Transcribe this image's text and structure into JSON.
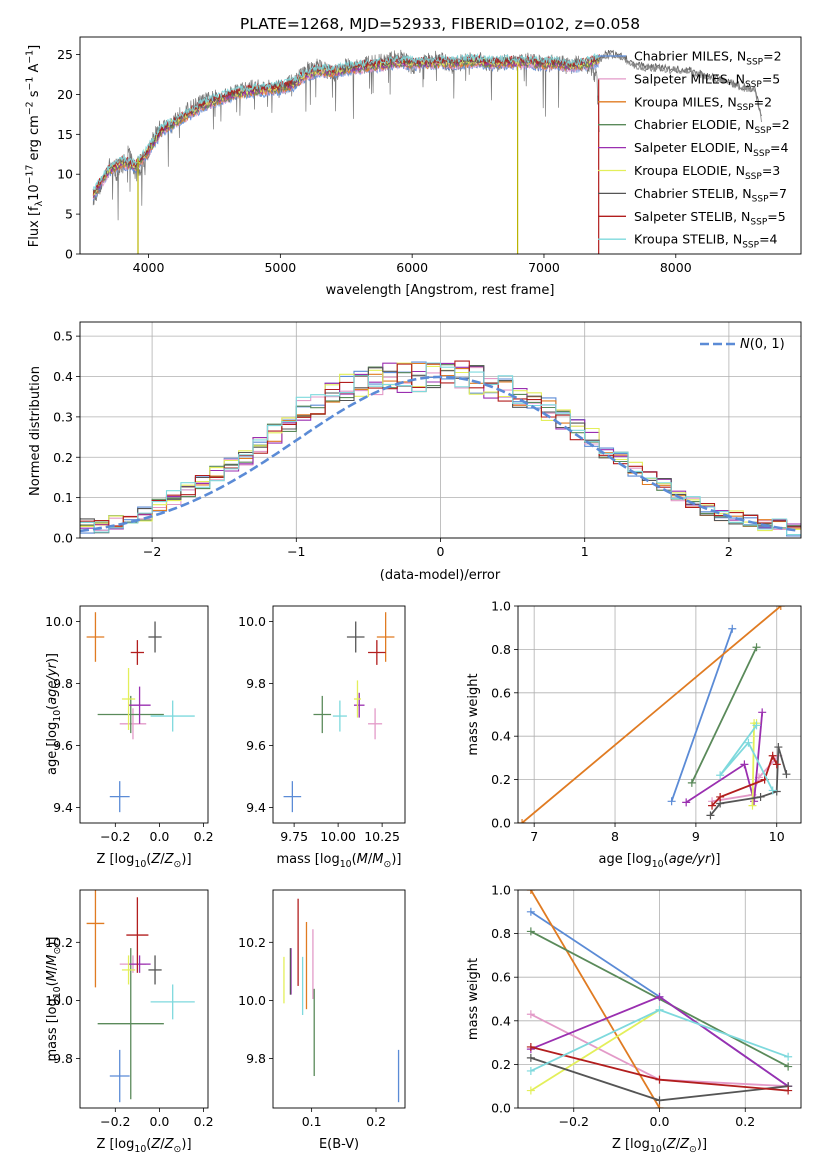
{
  "figure": {
    "title": "PLATE=1268, MJD=52933, FIBERID=0102, z=0.058"
  },
  "series_styles": [
    {
      "name": "Chabrier MILES",
      "nssp": "2",
      "color": "#5b8bd6"
    },
    {
      "name": "Salpeter MILES",
      "nssp": "5",
      "color": "#e39ac8"
    },
    {
      "name": "Kroupa MILES",
      "nssp": "2",
      "color": "#e07b22"
    },
    {
      "name": "Chabrier ELODIE",
      "nssp": "2",
      "color": "#5a8a5a"
    },
    {
      "name": "Salpeter ELODIE",
      "nssp": "4",
      "color": "#9a2fb0"
    },
    {
      "name": "Kroupa ELODIE",
      "nssp": "3",
      "color": "#e3ef5a"
    },
    {
      "name": "Chabrier STELIB",
      "nssp": "7",
      "color": "#555555"
    },
    {
      "name": "Salpeter STELIB",
      "nssp": "5",
      "color": "#b21e1e"
    },
    {
      "name": "Kroupa STELIB",
      "nssp": "4",
      "color": "#7ed9dd"
    }
  ],
  "chart_data": [
    {
      "id": "spectrum",
      "type": "line",
      "title": "PLATE=1268, MJD=52933, FIBERID=0102, z=0.058",
      "xlabel": "wavelength [Angstrom, rest frame]",
      "ylabel": "Flux [f_λ 10^-17 erg cm^-2 s^-1 A^-1]",
      "xlim": [
        3480,
        8950
      ],
      "ylim": [
        0,
        27.2
      ],
      "xticks": [
        4000,
        5000,
        6000,
        7000,
        8000
      ],
      "yticks": [
        0,
        5,
        10,
        15,
        20,
        25
      ],
      "grid": false,
      "legend": "top-right",
      "observed_flux": {
        "x": [
          3580,
          3650,
          3700,
          3750,
          3800,
          3850,
          3900,
          3950,
          4000,
          4050,
          4100,
          4150,
          4200,
          4300,
          4400,
          4500,
          4600,
          4700,
          4800,
          4900,
          5000,
          5100,
          5200,
          5300,
          5400,
          5500,
          5600,
          5700,
          5800,
          5900,
          6000,
          6100,
          6200,
          6300,
          6400,
          6500,
          6600,
          6700,
          6800,
          6900,
          7000,
          7100,
          7200,
          7300,
          7400,
          7420
        ],
        "y": [
          7,
          9,
          11,
          10,
          11,
          13,
          10,
          11,
          13,
          15,
          16,
          16,
          17,
          18,
          19,
          19.5,
          20,
          20.5,
          20.8,
          20.8,
          21,
          21.5,
          23,
          23.5,
          22.5,
          23.5,
          23.5,
          24,
          24,
          24.8,
          23.5,
          24,
          24.5,
          23.5,
          24.2,
          24.3,
          23.8,
          24,
          24,
          24.2,
          23.8,
          24,
          23.5,
          24,
          22.2,
          16
        ]
      },
      "model_flux": {
        "x": [
          3580,
          3700,
          3800,
          3900,
          4000,
          4100,
          4200,
          4300,
          4400,
          4500,
          4600,
          4700,
          4800,
          4900,
          5000,
          5100,
          5200,
          5300,
          5400,
          5500,
          5600,
          5700,
          5800,
          5900,
          6000,
          6100,
          6200,
          6300,
          6400,
          6500,
          6600,
          6700,
          6800,
          6900,
          7000,
          7100,
          7200,
          7300,
          7400,
          7500,
          7600,
          7700,
          7800,
          7900,
          8000,
          8100,
          8200,
          8300,
          8400,
          8500,
          8600,
          8650
        ],
        "y": [
          7.5,
          10.5,
          11.5,
          11,
          13,
          15.5,
          16.5,
          17.5,
          18.5,
          19.2,
          19.8,
          20.2,
          20.5,
          20.6,
          20.8,
          21.3,
          22.5,
          23,
          22.8,
          23.2,
          23.4,
          23.6,
          23.8,
          24,
          23.9,
          23.9,
          24,
          23.9,
          24.1,
          24.1,
          23.9,
          24,
          24,
          24,
          23.8,
          23.9,
          23.5,
          23.8,
          24.2,
          25,
          24.6,
          23.4,
          23.3,
          23,
          23,
          22.8,
          22.3,
          21.8,
          21.5,
          20.8,
          20.5,
          16.8
        ]
      }
    },
    {
      "id": "residuals",
      "type": "histogram",
      "xlabel": "(data-model)/error",
      "ylabel": "Normed distribution",
      "xlim": [
        -2.5,
        2.5
      ],
      "ylim": [
        0,
        0.535
      ],
      "xticks": [
        -2,
        -1,
        0,
        1,
        2
      ],
      "yticks": [
        0.0,
        0.1,
        0.2,
        0.3,
        0.4,
        0.5
      ],
      "grid": true,
      "legend": "top-right",
      "reference_curve": {
        "label": "N(0,1)",
        "mean": 0,
        "sigma": 1,
        "style": "dashed",
        "color": "#5b8bd6"
      },
      "bin_edges_start": -2.5,
      "bin_width": 0.1,
      "envelope": [
        0.03,
        0.03,
        0.04,
        0.05,
        0.06,
        0.08,
        0.1,
        0.12,
        0.14,
        0.16,
        0.18,
        0.2,
        0.23,
        0.26,
        0.29,
        0.32,
        0.33,
        0.35,
        0.37,
        0.38,
        0.39,
        0.4,
        0.4,
        0.4,
        0.4,
        0.4,
        0.4,
        0.39,
        0.38,
        0.37,
        0.35,
        0.34,
        0.32,
        0.29,
        0.27,
        0.25,
        0.22,
        0.2,
        0.17,
        0.15,
        0.13,
        0.11,
        0.09,
        0.07,
        0.06,
        0.05,
        0.04,
        0.03,
        0.03,
        0.02
      ]
    },
    {
      "id": "age_vs_metallicity",
      "type": "errorbar",
      "xlabel": "Z [log10(Z/Z⊙)]",
      "ylabel": "age  [log10(age/yr)]",
      "xlim": [
        -0.36,
        0.22
      ],
      "ylim": [
        9.35,
        10.05
      ],
      "xticks": [
        -0.2,
        0.0,
        0.2
      ],
      "yticks": [
        9.4,
        9.6,
        9.8,
        10.0
      ],
      "points": [
        {
          "series": 0,
          "x": -0.18,
          "y": 9.435,
          "xerr": 0.045,
          "yerr": 0.05
        },
        {
          "series": 1,
          "x": -0.12,
          "y": 9.67,
          "xerr": 0.06,
          "yerr": 0.05
        },
        {
          "series": 2,
          "x": -0.29,
          "y": 9.95,
          "xerr": 0.04,
          "yerr": 0.08
        },
        {
          "series": 3,
          "x": -0.13,
          "y": 9.7,
          "xerr": 0.15,
          "yerr": 0.06
        },
        {
          "series": 4,
          "x": -0.09,
          "y": 9.73,
          "xerr": 0.05,
          "yerr": 0.06
        },
        {
          "series": 5,
          "x": -0.14,
          "y": 9.75,
          "xerr": 0.03,
          "yerr": 0.1
        },
        {
          "series": 6,
          "x": -0.02,
          "y": 9.95,
          "xerr": 0.03,
          "yerr": 0.05
        },
        {
          "series": 7,
          "x": -0.1,
          "y": 9.9,
          "xerr": 0.03,
          "yerr": 0.04
        },
        {
          "series": 8,
          "x": 0.06,
          "y": 9.695,
          "xerr": 0.1,
          "yerr": 0.05
        }
      ]
    },
    {
      "id": "age_vs_mass",
      "type": "errorbar",
      "xlabel": "mass [log10(M/M⊙)]",
      "ylabel": "",
      "xlim": [
        9.63,
        10.38
      ],
      "ylim": [
        9.35,
        10.05
      ],
      "xticks": [
        9.75,
        10.0,
        10.25
      ],
      "yticks": [
        9.4,
        9.6,
        9.8,
        10.0
      ],
      "points": [
        {
          "series": 0,
          "x": 9.74,
          "y": 9.435,
          "xerr": 0.05,
          "yerr": 0.05
        },
        {
          "series": 1,
          "x": 10.21,
          "y": 9.67,
          "xerr": 0.04,
          "yerr": 0.05
        },
        {
          "series": 2,
          "x": 10.27,
          "y": 9.95,
          "xerr": 0.05,
          "yerr": 0.08
        },
        {
          "series": 3,
          "x": 9.91,
          "y": 9.7,
          "xerr": 0.05,
          "yerr": 0.06
        },
        {
          "series": 4,
          "x": 10.12,
          "y": 9.73,
          "xerr": 0.03,
          "yerr": 0.04
        },
        {
          "series": 5,
          "x": 10.11,
          "y": 9.75,
          "xerr": 0.02,
          "yerr": 0.06
        },
        {
          "series": 6,
          "x": 10.1,
          "y": 9.95,
          "xerr": 0.05,
          "yerr": 0.05
        },
        {
          "series": 7,
          "x": 10.22,
          "y": 9.9,
          "xerr": 0.05,
          "yerr": 0.04
        },
        {
          "series": 8,
          "x": 10.01,
          "y": 9.695,
          "xerr": 0.04,
          "yerr": 0.05
        }
      ]
    },
    {
      "id": "mass_weight_vs_age",
      "type": "line",
      "xlabel": "age  [log10(age/yr)]",
      "ylabel": "mass weight",
      "xlim": [
        6.8,
        10.3
      ],
      "ylim": [
        0,
        1.0
      ],
      "xticks": [
        7,
        8,
        9,
        10
      ],
      "yticks": [
        0.0,
        0.2,
        0.4,
        0.6,
        0.8,
        1.0
      ],
      "grid": true,
      "series": [
        {
          "series": 0,
          "x": [
            8.7,
            9.45
          ],
          "y": [
            0.1,
            0.895
          ]
        },
        {
          "series": 1,
          "x": [
            9.2,
            9.7,
            9.78,
            10.02
          ],
          "y": [
            0.1,
            0.13,
            0.21,
            0.31
          ]
        },
        {
          "series": 2,
          "x": [
            6.85,
            10.05
          ],
          "y": [
            0.0,
            1.0
          ]
        },
        {
          "series": 3,
          "x": [
            8.95,
            9.75
          ],
          "y": [
            0.185,
            0.81
          ]
        },
        {
          "series": 4,
          "x": [
            8.88,
            9.6,
            9.72,
            9.82
          ],
          "y": [
            0.095,
            0.27,
            0.1,
            0.51
          ]
        },
        {
          "series": 5,
          "x": [
            9.7,
            9.72,
            9.75
          ],
          "y": [
            0.08,
            0.46,
            0.46
          ]
        },
        {
          "series": 6,
          "x": [
            9.18,
            9.3,
            9.8,
            10.0,
            10.02,
            10.12
          ],
          "y": [
            0.035,
            0.09,
            0.12,
            0.145,
            0.35,
            0.225
          ]
        },
        {
          "series": 7,
          "x": [
            9.2,
            9.3,
            9.85,
            9.95,
            10.0
          ],
          "y": [
            0.08,
            0.12,
            0.2,
            0.31,
            0.27
          ]
        },
        {
          "series": 8,
          "x": [
            9.75,
            9.3,
            9.65,
            9.95
          ],
          "y": [
            0.45,
            0.22,
            0.37,
            0.15
          ]
        }
      ]
    },
    {
      "id": "mass_vs_metallicity",
      "type": "errorbar",
      "xlabel": "Z [log10(Z/Z⊙)]",
      "ylabel": "mass [log10(M/M⊙)]",
      "xlim": [
        -0.36,
        0.22
      ],
      "ylim": [
        9.63,
        10.38
      ],
      "xticks": [
        -0.2,
        0.0,
        0.2
      ],
      "yticks": [
        9.8,
        10.0,
        10.2
      ],
      "points": [
        {
          "series": 0,
          "x": -0.18,
          "y": 9.74,
          "xerr": 0.045,
          "yerr": 0.09
        },
        {
          "series": 1,
          "x": -0.12,
          "y": 10.125,
          "xerr": 0.06,
          "yerr": 0.03
        },
        {
          "series": 2,
          "x": -0.29,
          "y": 10.265,
          "xerr": 0.04,
          "yerr": 0.22
        },
        {
          "series": 3,
          "x": -0.13,
          "y": 9.92,
          "xerr": 0.15,
          "yerr": 0.26
        },
        {
          "series": 4,
          "x": -0.09,
          "y": 10.125,
          "xerr": 0.05,
          "yerr": 0.03
        },
        {
          "series": 5,
          "x": -0.14,
          "y": 10.105,
          "xerr": 0.03,
          "yerr": 0.05
        },
        {
          "series": 6,
          "x": -0.02,
          "y": 10.105,
          "xerr": 0.03,
          "yerr": 0.05
        },
        {
          "series": 7,
          "x": -0.1,
          "y": 10.225,
          "xerr": 0.05,
          "yerr": 0.13
        },
        {
          "series": 8,
          "x": 0.06,
          "y": 9.995,
          "xerr": 0.1,
          "yerr": 0.06
        }
      ]
    },
    {
      "id": "mass_vs_ebv",
      "type": "errorbar",
      "xlabel": "E(B-V)",
      "ylabel": "",
      "xlim": [
        0.04,
        0.245
      ],
      "ylim": [
        9.63,
        10.38
      ],
      "xticks": [
        0.1,
        0.2
      ],
      "yticks": [
        9.8,
        10.0,
        10.2
      ],
      "points": [
        {
          "series": 0,
          "x": 0.235,
          "y": 9.74,
          "xerr": 0,
          "yerr": 0.09
        },
        {
          "series": 1,
          "x": 0.102,
          "y": 10.125,
          "xerr": 0,
          "yerr": 0.12
        },
        {
          "series": 2,
          "x": 0.092,
          "y": 10.12,
          "xerr": 0,
          "yerr": 0.15
        },
        {
          "series": 3,
          "x": 0.104,
          "y": 9.89,
          "xerr": 0,
          "yerr": 0.15
        },
        {
          "series": 4,
          "x": 0.068,
          "y": 10.1,
          "xerr": 0,
          "yerr": 0.08
        },
        {
          "series": 5,
          "x": 0.057,
          "y": 10.07,
          "xerr": 0,
          "yerr": 0.08
        },
        {
          "series": 6,
          "x": 0.067,
          "y": 10.1,
          "xerr": 0,
          "yerr": 0.08
        },
        {
          "series": 7,
          "x": 0.079,
          "y": 10.2,
          "xerr": 0,
          "yerr": 0.15
        },
        {
          "series": 8,
          "x": 0.086,
          "y": 10.05,
          "xerr": 0,
          "yerr": 0.1
        }
      ]
    },
    {
      "id": "mass_weight_vs_metallicity",
      "type": "line",
      "xlabel": "Z [log10(Z/Z⊙)]",
      "ylabel": "mass weight",
      "xlim": [
        -0.33,
        0.33
      ],
      "ylim": [
        0,
        1.0
      ],
      "xticks": [
        -0.2,
        0.0,
        0.2
      ],
      "yticks": [
        0.0,
        0.2,
        0.4,
        0.6,
        0.8,
        1.0
      ],
      "grid": true,
      "series": [
        {
          "series": 0,
          "x": [
            -0.3,
            0.0,
            0.3
          ],
          "y": [
            0.9,
            0.51,
            0.1
          ]
        },
        {
          "series": 1,
          "x": [
            -0.3,
            0.0,
            0.3
          ],
          "y": [
            0.43,
            0.13,
            0.1
          ]
        },
        {
          "series": 2,
          "x": [
            -0.3,
            0.0
          ],
          "y": [
            1.0,
            0.0
          ]
        },
        {
          "series": 3,
          "x": [
            -0.3,
            0.3
          ],
          "y": [
            0.81,
            0.19
          ]
        },
        {
          "series": 4,
          "x": [
            -0.3,
            0.0,
            0.3
          ],
          "y": [
            0.27,
            0.51,
            0.1
          ]
        },
        {
          "series": 5,
          "x": [
            -0.3,
            0.0
          ],
          "y": [
            0.08,
            0.45
          ]
        },
        {
          "series": 6,
          "x": [
            -0.3,
            0.0,
            0.3
          ],
          "y": [
            0.23,
            0.035,
            0.1
          ]
        },
        {
          "series": 7,
          "x": [
            -0.3,
            0.0,
            0.3
          ],
          "y": [
            0.28,
            0.13,
            0.08
          ]
        },
        {
          "series": 8,
          "x": [
            -0.3,
            0.0,
            0.3
          ],
          "y": [
            0.17,
            0.45,
            0.235
          ]
        }
      ]
    }
  ]
}
